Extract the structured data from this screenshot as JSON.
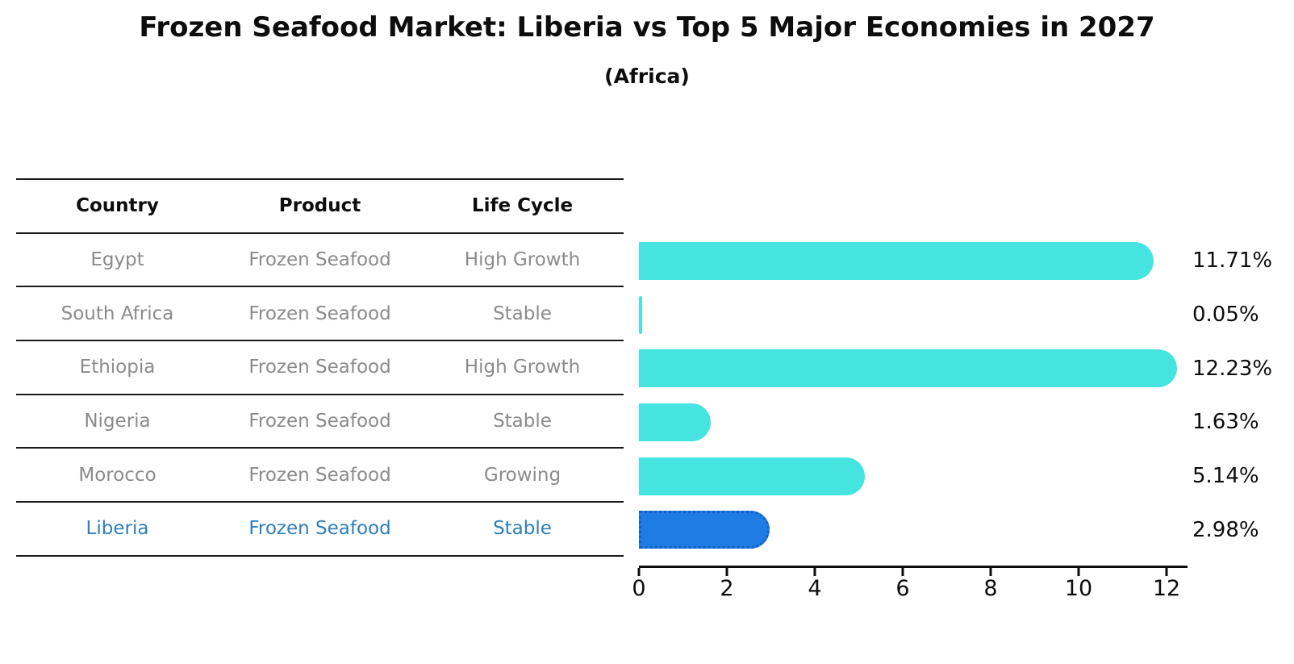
{
  "title": "Frozen Seafood Market: Liberia vs Top 5 Major Economies in 2027",
  "subtitle": "(Africa)",
  "table": {
    "headers": [
      "Country",
      "Product",
      "Life Cycle"
    ],
    "rows": [
      {
        "country": "Egypt",
        "product": "Frozen Seafood",
        "life_cycle": "High Growth",
        "highlight": false
      },
      {
        "country": "South Africa",
        "product": "Frozen Seafood",
        "life_cycle": "Stable",
        "highlight": false
      },
      {
        "country": "Ethiopia",
        "product": "Frozen Seafood",
        "life_cycle": "High Growth",
        "highlight": false
      },
      {
        "country": "Nigeria",
        "product": "Frozen Seafood",
        "life_cycle": "Stable",
        "highlight": false
      },
      {
        "country": "Morocco",
        "product": "Frozen Seafood",
        "life_cycle": "Growing",
        "highlight": false
      },
      {
        "country": "Liberia",
        "product": "Frozen Seafood",
        "life_cycle": "Stable",
        "highlight": true
      }
    ]
  },
  "chart_data": {
    "type": "bar",
    "orientation": "horizontal",
    "title": "Frozen Seafood Market: Liberia vs Top 5 Major Economies in 2027",
    "subtitle": "(Africa)",
    "categories": [
      "Egypt",
      "South Africa",
      "Ethiopia",
      "Nigeria",
      "Morocco",
      "Liberia"
    ],
    "values": [
      11.71,
      0.05,
      12.23,
      1.63,
      5.14,
      2.98
    ],
    "value_labels": [
      "11.71%",
      "0.05%",
      "12.23%",
      "1.63%",
      "5.14%",
      "2.98%"
    ],
    "x_ticks": [
      0,
      2,
      4,
      6,
      8,
      10,
      12
    ],
    "xlim": [
      0,
      12.6
    ],
    "grid": false,
    "legend": false,
    "highlight_category": "Liberia",
    "bar_color": "#46e4e1",
    "highlight_bar_color": "#1f7ce4",
    "highlight_border_color": "#1260c4",
    "highlight_text_color": "#2e7ebb",
    "muted_text_color": "#8b8b8b"
  }
}
